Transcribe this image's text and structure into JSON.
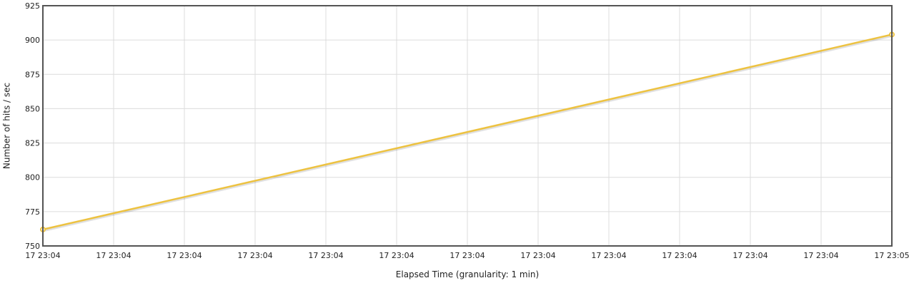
{
  "chart_data": {
    "type": "line",
    "title": "",
    "xlabel": "Elapsed Time (granularity: 1 min)",
    "ylabel": "Number of hits / sec",
    "ylim": [
      750,
      925
    ],
    "y_ticks": [
      750,
      775,
      800,
      825,
      850,
      875,
      900,
      925
    ],
    "x_tick_labels": [
      "17 23:04",
      "17 23:04",
      "17 23:04",
      "17 23:04",
      "17 23:04",
      "17 23:04",
      "17 23:04",
      "17 23:04",
      "17 23:04",
      "17 23:04",
      "17 23:04",
      "17 23:04",
      "17 23:05"
    ],
    "grid": true,
    "legend": "none",
    "series": [
      {
        "color": "#EDC240",
        "points": [
          {
            "x": "17 23:04",
            "y": 762
          },
          {
            "x": "17 23:05",
            "y": 904
          }
        ]
      }
    ]
  }
}
